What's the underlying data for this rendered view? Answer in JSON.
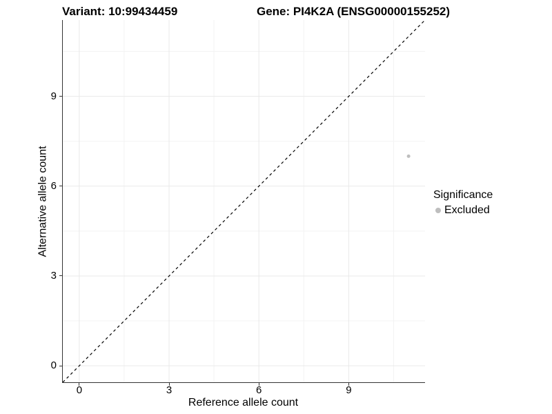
{
  "chart_data": {
    "type": "scatter",
    "titles": {
      "variant": "Variant: 10:99434459",
      "gene": "Gene: PI4K2A (ENSG00000155252)"
    },
    "xlabel": "Reference allele count",
    "ylabel": "Alternative allele count",
    "xticks": [
      0,
      3,
      6,
      9
    ],
    "yticks": [
      0,
      3,
      6,
      9
    ],
    "xlim": [
      -0.55,
      11.55
    ],
    "ylim": [
      -0.55,
      11.55
    ],
    "grid": {
      "major": [
        0,
        3,
        6,
        9
      ],
      "minor": [
        1.5,
        4.5,
        7.5,
        10.5
      ],
      "major_color": "#e9e9e9",
      "minor_color": "#f3f3f3"
    },
    "reference_line": {
      "style": "dashed",
      "color": "#000000",
      "from": [
        -0.55,
        -0.55
      ],
      "to": [
        11.55,
        11.55
      ]
    },
    "series": [
      {
        "name": "Excluded",
        "color": "#bebebe",
        "point_radius": 2.5,
        "points": [
          {
            "x": 11,
            "y": 7
          }
        ]
      }
    ],
    "legend": {
      "title": "Significance",
      "position": "right",
      "entries": [
        {
          "label": "Excluded",
          "color": "#bebebe"
        }
      ]
    }
  }
}
